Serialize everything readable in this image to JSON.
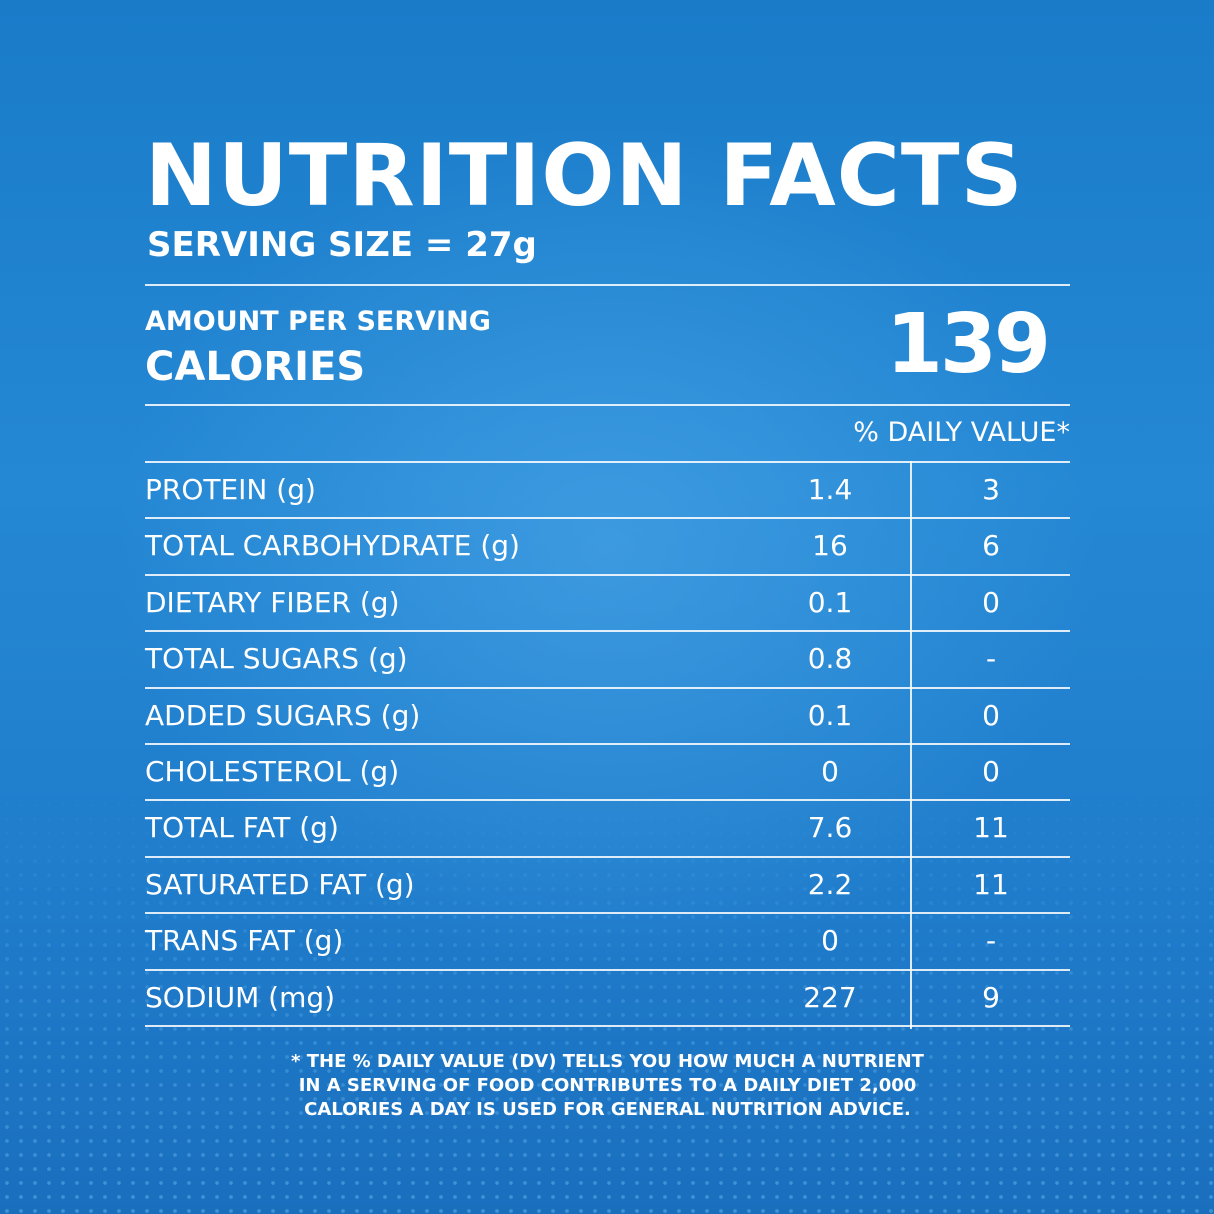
{
  "header": {
    "title": "NUTRITION FACTS",
    "serving_size": "SERVING SIZE = 27g"
  },
  "calories": {
    "amount_label": "AMOUNT PER SERVING",
    "label": "CALORIES",
    "value": "139"
  },
  "daily_value_header": "% DAILY VALUE*",
  "nutrients": [
    {
      "name": "PROTEIN (g)",
      "amount": "1.4",
      "dv": "3"
    },
    {
      "name": "TOTAL CARBOHYDRATE (g)",
      "amount": "16",
      "dv": "6"
    },
    {
      "name": "DIETARY FIBER (g)",
      "amount": "0.1",
      "dv": "0"
    },
    {
      "name": "TOTAL SUGARS (g)",
      "amount": "0.8",
      "dv": "-"
    },
    {
      "name": "ADDED SUGARS (g)",
      "amount": "0.1",
      "dv": "0"
    },
    {
      "name": "CHOLESTEROL (g)",
      "amount": "0",
      "dv": "0"
    },
    {
      "name": "TOTAL FAT (g)",
      "amount": "7.6",
      "dv": "11"
    },
    {
      "name": "SATURATED FAT (g)",
      "amount": "2.2",
      "dv": "11"
    },
    {
      "name": "TRANS FAT (g)",
      "amount": "0",
      "dv": "-"
    },
    {
      "name": "SODIUM (mg)",
      "amount": "227",
      "dv": "9"
    }
  ],
  "footnote": {
    "line1": "* THE % DAILY VALUE (DV) TELLS YOU HOW MUCH A NUTRIENT",
    "line2": "IN A SERVING OF FOOD CONTRIBUTES TO A DAILY DIET 2,000",
    "line3": "CALORIES A DAY IS USED FOR GENERAL NUTRITION ADVICE."
  },
  "colors": {
    "background": "#1f80cd",
    "text": "#ffffff"
  }
}
